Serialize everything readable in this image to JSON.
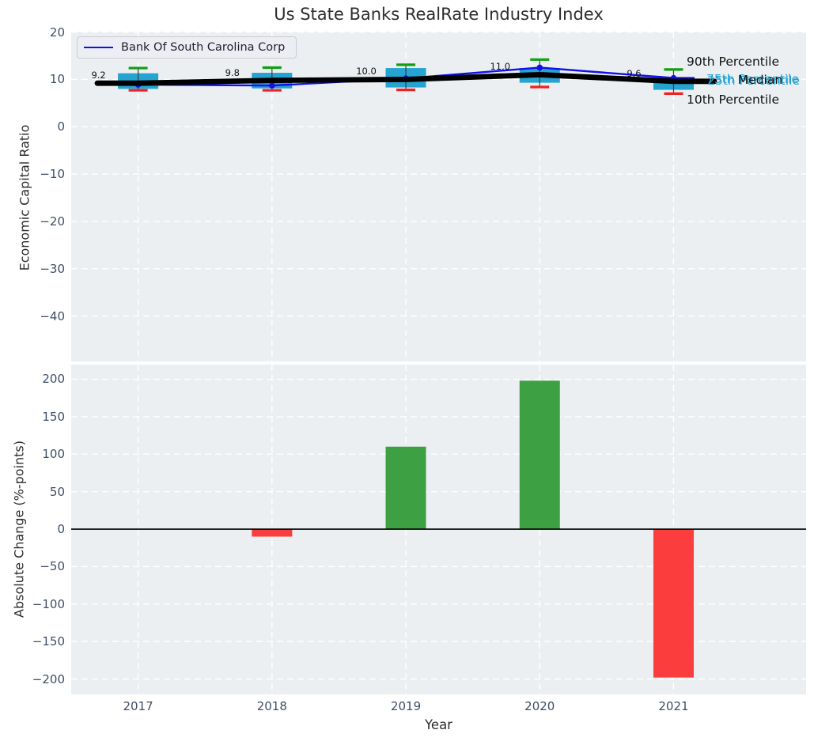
{
  "title": "Us State Banks RealRate Industry Index",
  "legend": {
    "series_label": "Bank Of South Carolina Corp"
  },
  "right_labels": {
    "p90": "90th Percentile",
    "p75": "75th Percentile",
    "median": "Median",
    "p25": "25th Percentile",
    "p10": "10th Percentile"
  },
  "xlabel": "Year",
  "top_ylabel": "Economic Capital Ratio",
  "bottom_ylabel": "Absolute Change (%-points)",
  "colors": {
    "axes_background": "#eceff1",
    "grid": "#ffffff",
    "box_fill": "#25a3d1",
    "whisker": "#3d3d3d",
    "cap_top_green": "#0f9f10",
    "cap_bottom_red": "#ee2222",
    "median_line": "#000000",
    "company_line_blue": "#1010ee",
    "bar_positive_green": "#3da043",
    "bar_negative_red": "#fb3d3d",
    "tick_label": "#3f4e66",
    "zero_line": "#000000"
  },
  "chart_data": [
    {
      "type": "boxplot-line",
      "title": "Us State Banks RealRate Industry Index",
      "x": [
        2017,
        2018,
        2019,
        2020,
        2021
      ],
      "x_ticklabels": [
        "2017",
        "2018",
        "2019",
        "2020",
        "2021"
      ],
      "ylabel": "Economic Capital Ratio",
      "ylim": [
        -49.6,
        20.1
      ],
      "yticks": [
        20,
        10,
        0,
        -10,
        -20,
        -30,
        -40
      ],
      "ytick_labels": [
        "20",
        "10",
        "0",
        "−10",
        "−20",
        "−30",
        "−40"
      ],
      "grid": true,
      "legend_position": "upper left",
      "series": [
        {
          "name": "Bank Of South Carolina Corp",
          "values": [
            8.9,
            8.7,
            10.2,
            12.5,
            10.3
          ]
        }
      ],
      "percentiles": {
        "p90": [
          12.4,
          12.5,
          13.1,
          14.2,
          12.1
        ],
        "p75": [
          11.3,
          11.4,
          12.4,
          12.4,
          10.2
        ],
        "median": [
          9.2,
          9.8,
          10.0,
          11.0,
          9.6
        ],
        "p25": [
          8.0,
          8.1,
          8.3,
          9.3,
          7.8
        ],
        "p10": [
          7.7,
          7.7,
          7.8,
          8.4,
          7.0
        ]
      },
      "median_annotations": [
        "9.2",
        "9.8",
        "10.0",
        "11.0",
        "9.6"
      ]
    },
    {
      "type": "bar",
      "categories": [
        "2017",
        "2018",
        "2019",
        "2020",
        "2021"
      ],
      "values": [
        0,
        -10,
        110,
        198,
        -198
      ],
      "ylabel": "Absolute Change (%-points)",
      "xlabel": "Year",
      "ylim": [
        -220.5,
        219.5
      ],
      "yticks": [
        200,
        150,
        100,
        50,
        0,
        -50,
        -100,
        -150,
        -200
      ],
      "ytick_labels": [
        "200",
        "150",
        "100",
        "50",
        "0",
        "−50",
        "−100",
        "−150",
        "−200"
      ],
      "grid": true
    }
  ]
}
